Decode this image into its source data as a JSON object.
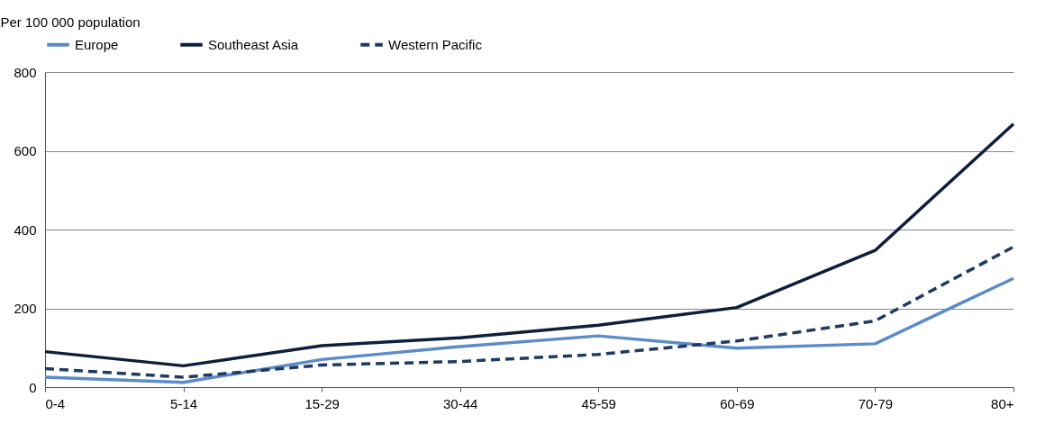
{
  "chart_data": {
    "type": "line",
    "ylabel": "Per 100 000 population",
    "categories": [
      "0-4",
      "5-14",
      "15-29",
      "30-44",
      "45-59",
      "60-69",
      "70-79",
      "80+"
    ],
    "series": [
      {
        "name": "Europe",
        "color": "#5b8bc8",
        "line_style": "solid",
        "values": [
          25,
          12,
          70,
          103,
          130,
          99,
          110,
          276
        ]
      },
      {
        "name": "Southeast Asia",
        "color": "#0d1f3c",
        "line_style": "solid",
        "values": [
          90,
          54,
          105,
          125,
          157,
          202,
          347,
          668
        ]
      },
      {
        "name": "Western Pacific",
        "color": "#1f3a64",
        "line_style": "dashed",
        "values": [
          47,
          25,
          56,
          65,
          83,
          117,
          168,
          356
        ]
      }
    ],
    "ylim": [
      0,
      800
    ],
    "yticks": [
      0,
      200,
      400,
      600,
      800
    ],
    "grid": "y",
    "legend": "top",
    "marker": "none"
  }
}
